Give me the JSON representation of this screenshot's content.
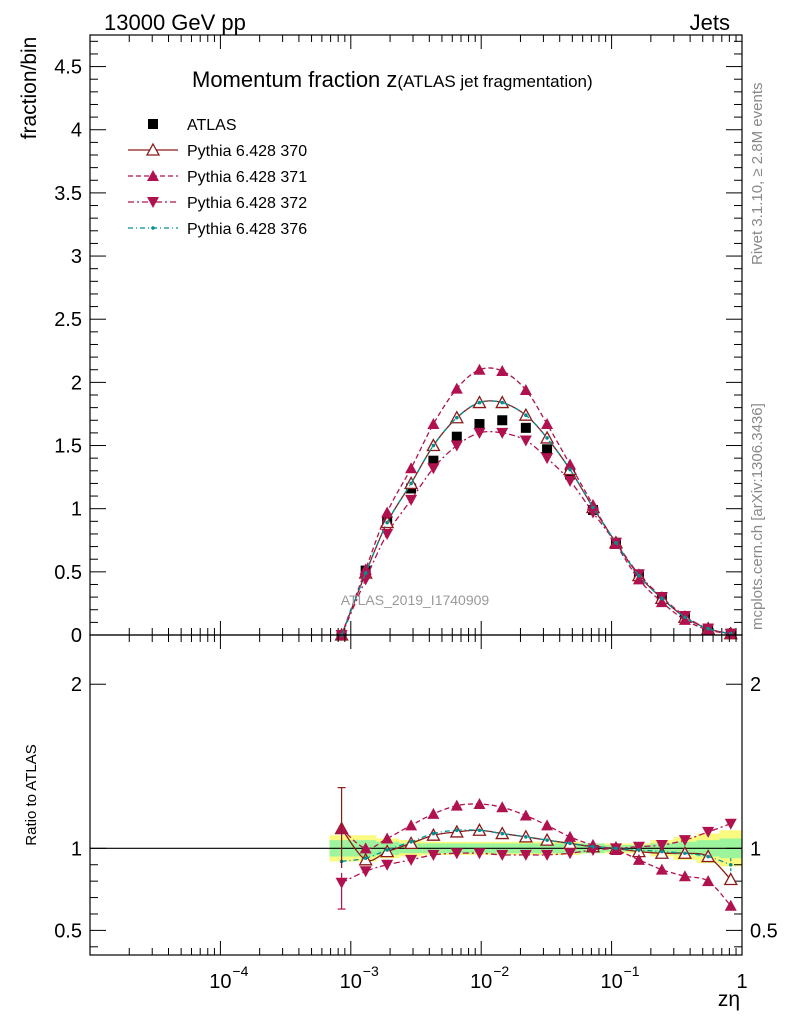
{
  "header": {
    "left": "13000 GeV pp",
    "right": "Jets",
    "side_rivet": "Rivet 3.1.10, ≥ 2.8M events",
    "side_mcplots": "mcplots.cern.ch [arXiv:1306.3436]"
  },
  "colors": {
    "atlas": "#000000",
    "p370": "#8b1a1a",
    "p371": "#b0124f",
    "p372": "#b0124f",
    "p376": "#009090",
    "band_green": "#9cf59c",
    "band_yellow": "#fafa80"
  },
  "chart_data": [
    {
      "type": "line",
      "title_main": "Momentum fraction z",
      "title_sub": "(ATLAS jet fragmentation)",
      "ylabel": "fraction/bin",
      "watermark": "ATLAS_2019_I1740909",
      "xscale": "log",
      "xlim": [
        1e-05,
        1
      ],
      "ylim": [
        0,
        4.75
      ],
      "yticks": [
        "0",
        "0.5",
        "1",
        "1.5",
        "2",
        "2.5",
        "3",
        "3.5",
        "4",
        "4.5"
      ],
      "legend_position": "top-left",
      "x": [
        0.00085,
        0.0013,
        0.0019,
        0.0029,
        0.0043,
        0.0065,
        0.0097,
        0.0145,
        0.022,
        0.032,
        0.048,
        0.072,
        0.108,
        0.162,
        0.243,
        0.365,
        0.55,
        0.82
      ],
      "series": [
        {
          "name": "ATLAS",
          "marker": "square",
          "values": [
            0.0,
            0.51,
            0.9,
            1.16,
            1.38,
            1.57,
            1.67,
            1.7,
            1.64,
            1.47,
            1.27,
            0.99,
            0.73,
            0.48,
            0.3,
            0.15,
            0.05,
            0.01
          ]
        },
        {
          "name": "Pythia 6.428 370",
          "marker": "triangle-up-open",
          "values": [
            0.0,
            0.49,
            0.89,
            1.2,
            1.5,
            1.72,
            1.84,
            1.84,
            1.74,
            1.56,
            1.31,
            1.01,
            0.73,
            0.47,
            0.29,
            0.14,
            0.05,
            0.01
          ]
        },
        {
          "name": "Pythia 6.428 371",
          "marker": "triangle-up",
          "values": [
            0.0,
            0.52,
            0.97,
            1.32,
            1.67,
            1.95,
            2.1,
            2.09,
            1.94,
            1.67,
            1.35,
            1.03,
            0.72,
            0.44,
            0.26,
            0.12,
            0.04,
            0.01
          ]
        },
        {
          "name": "Pythia 6.428 372",
          "marker": "triangle-down",
          "values": [
            0.0,
            0.44,
            0.8,
            1.07,
            1.32,
            1.5,
            1.6,
            1.6,
            1.54,
            1.4,
            1.22,
            0.97,
            0.73,
            0.48,
            0.3,
            0.15,
            0.05,
            0.01
          ]
        },
        {
          "name": "Pythia 6.428 376",
          "marker": "dot",
          "values": [
            0.0,
            0.49,
            0.89,
            1.2,
            1.5,
            1.72,
            1.84,
            1.84,
            1.74,
            1.56,
            1.31,
            1.01,
            0.73,
            0.47,
            0.29,
            0.14,
            0.05,
            0.01
          ]
        }
      ]
    },
    {
      "type": "line",
      "ylabel": "Ratio to ATLAS",
      "xlabel": "zη",
      "xscale": "log",
      "xlim": [
        1e-05,
        1
      ],
      "ylim": [
        0.35,
        2.3
      ],
      "yticks": [
        "0.5",
        "1",
        "2"
      ],
      "xticks": [
        "10",
        "10",
        "10",
        "10",
        "1"
      ],
      "xtick_exponents": [
        "−4",
        "−3",
        "−2",
        "−1",
        ""
      ],
      "x": [
        0.00085,
        0.0013,
        0.0019,
        0.0029,
        0.0043,
        0.0065,
        0.0097,
        0.0145,
        0.022,
        0.032,
        0.048,
        0.072,
        0.108,
        0.162,
        0.243,
        0.365,
        0.55,
        0.82
      ],
      "band": {
        "inner": [
          0.05,
          0.05,
          0.04,
          0.03,
          0.03,
          0.03,
          0.03,
          0.03,
          0.03,
          0.03,
          0.03,
          0.03,
          0.02,
          0.02,
          0.03,
          0.04,
          0.05,
          0.06
        ],
        "outer": [
          0.08,
          0.08,
          0.06,
          0.05,
          0.04,
          0.04,
          0.04,
          0.04,
          0.04,
          0.04,
          0.04,
          0.03,
          0.03,
          0.03,
          0.05,
          0.07,
          0.09,
          0.11
        ]
      },
      "series": [
        {
          "name": "Pythia 6.428 370",
          "values": [
            1.12,
            0.93,
            0.98,
            1.03,
            1.08,
            1.1,
            1.11,
            1.09,
            1.07,
            1.05,
            1.03,
            1.01,
            1.0,
            0.98,
            0.97,
            0.97,
            0.95,
            0.81
          ]
        },
        {
          "name": "Pythia 6.428 371",
          "values": [
            1.12,
            1.0,
            1.06,
            1.14,
            1.21,
            1.26,
            1.27,
            1.25,
            1.2,
            1.14,
            1.07,
            1.02,
            0.99,
            0.93,
            0.87,
            0.83,
            0.8,
            0.65
          ]
        },
        {
          "name": "Pythia 6.428 372",
          "values": [
            0.79,
            0.86,
            0.9,
            0.93,
            0.96,
            0.97,
            0.97,
            0.96,
            0.96,
            0.96,
            0.97,
            0.99,
            1.0,
            1.01,
            1.02,
            1.05,
            1.1,
            1.15
          ]
        },
        {
          "name": "Pythia 6.428 376",
          "values": [
            0.92,
            0.94,
            0.99,
            1.04,
            1.09,
            1.11,
            1.11,
            1.09,
            1.07,
            1.05,
            1.03,
            1.01,
            1.0,
            0.99,
            0.98,
            0.97,
            0.95,
            0.9
          ]
        }
      ]
    }
  ]
}
